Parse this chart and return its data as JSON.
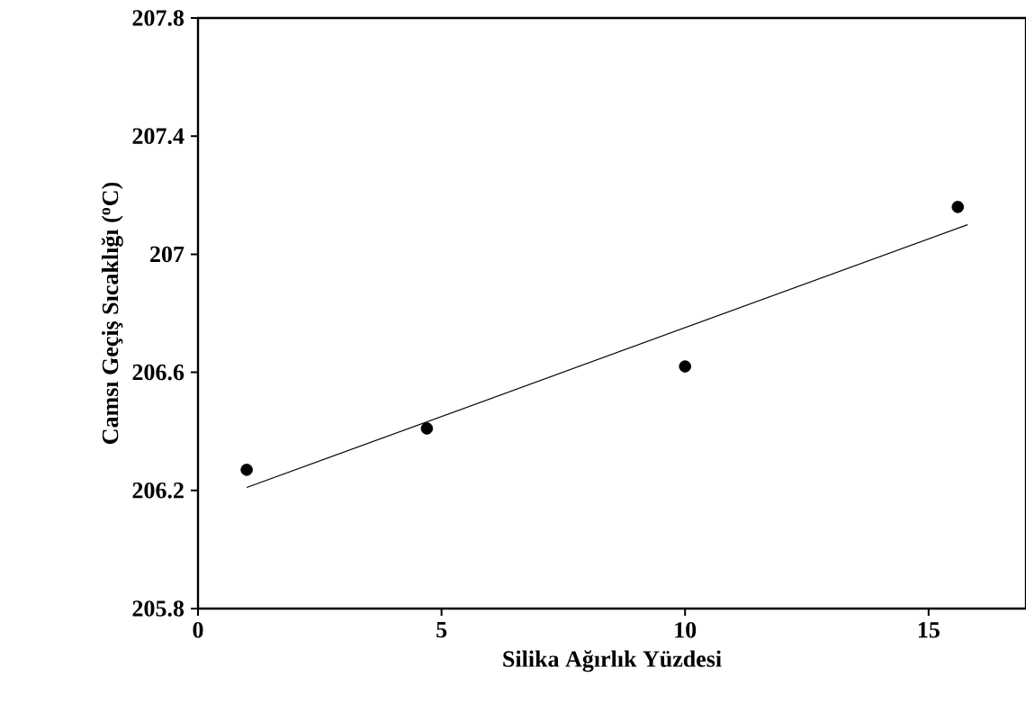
{
  "chart_data": {
    "type": "scatter",
    "xlabel": "Silika Ağırlık Yüzdesi",
    "ylabel": "Camsı Geçiş Sıcaklığı  ($^{o}$C)",
    "xlim": [
      0,
      17
    ],
    "ylim": [
      205.8,
      207.8
    ],
    "xticks": [
      0,
      5,
      10,
      15
    ],
    "yticks": [
      205.8,
      206.2,
      206.6,
      207,
      207.4,
      207.8
    ],
    "series": [
      {
        "marker": "circle",
        "color": "#000000",
        "x": [
          1,
          4.7,
          10,
          15.6
        ],
        "values": [
          206.27,
          206.41,
          206.62,
          207.16
        ]
      },
      {
        "type": "line",
        "marker": "none",
        "color": "#000000",
        "x": [
          1,
          15.8
        ],
        "values": [
          206.21,
          207.1
        ]
      }
    ]
  }
}
